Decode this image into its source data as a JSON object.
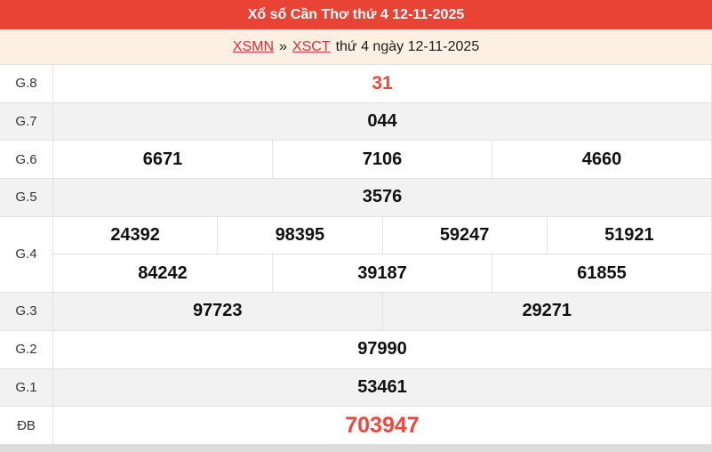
{
  "header": {
    "title": "Xổ số Cần Thơ thứ 4 12-11-2025"
  },
  "breadcrumb": {
    "region_link": "XSMN",
    "separator": "»",
    "station_link": "XSCT",
    "suffix": "thứ 4 ngày 12-11-2025"
  },
  "colors": {
    "header_bg": "#e84335",
    "breadcrumb_bg": "#fcf0e2",
    "row_alt_bg": "#f2f2f2",
    "border": "#e2e2e2",
    "number_red": "#f0463c",
    "link_red": "#e32b3c",
    "number_black": "#111111",
    "label_color": "#333333"
  },
  "table": {
    "rows": [
      {
        "key": "g8",
        "label": "G.8",
        "lines": [
          [
            "31"
          ]
        ],
        "highlight": true
      },
      {
        "key": "g7",
        "label": "G.7",
        "lines": [
          [
            "044"
          ]
        ]
      },
      {
        "key": "g6",
        "label": "G.6",
        "lines": [
          [
            "6671",
            "7106",
            "4660"
          ]
        ]
      },
      {
        "key": "g5",
        "label": "G.5",
        "lines": [
          [
            "3576"
          ]
        ]
      },
      {
        "key": "g4",
        "label": "G.4",
        "lines": [
          [
            "24392",
            "98395",
            "59247",
            "51921"
          ],
          [
            "84242",
            "39187",
            "61855"
          ]
        ]
      },
      {
        "key": "g3",
        "label": "G.3",
        "lines": [
          [
            "97723",
            "29271"
          ]
        ]
      },
      {
        "key": "g2",
        "label": "G.2",
        "lines": [
          [
            "97990"
          ]
        ]
      },
      {
        "key": "g1",
        "label": "G.1",
        "lines": [
          [
            "53461"
          ]
        ]
      },
      {
        "key": "db",
        "label": "ĐB",
        "lines": [
          [
            "703947"
          ]
        ],
        "highlight": true,
        "big": true
      }
    ]
  }
}
